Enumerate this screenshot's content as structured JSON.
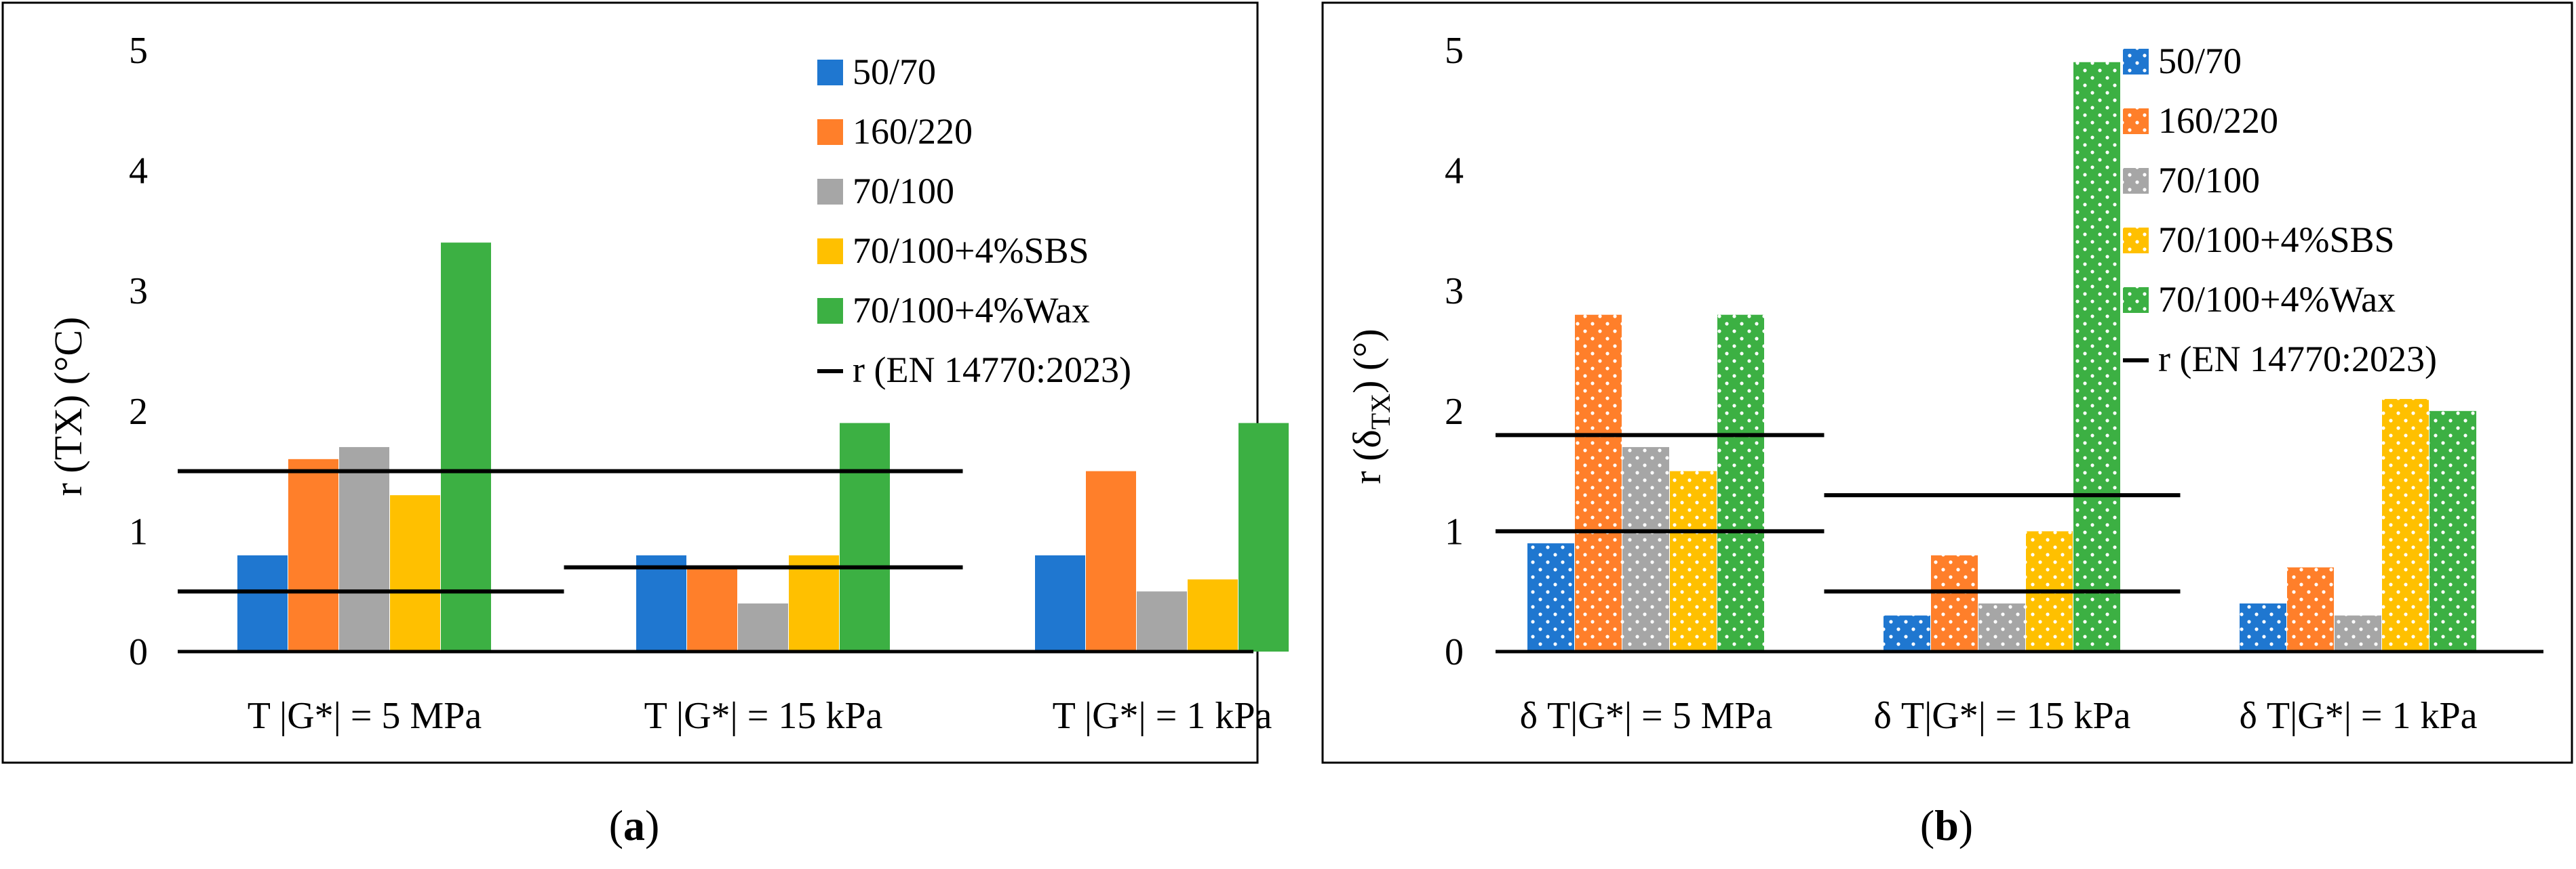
{
  "colors": {
    "50/70": "#1f77d0",
    "160/220": "#ff7f2a",
    "70/100": "#a6a6a6",
    "70/100+4%SBS": "#ffc000",
    "70/100+4%Wax": "#3cb043",
    "ref_line": "#000000"
  },
  "chart_data": [
    {
      "type": "bar",
      "panel_label": "a",
      "ylabel": "r (TX) (°C)",
      "ylim": [
        0,
        5
      ],
      "yticks": [
        "0",
        "1",
        "2",
        "3",
        "4",
        "5"
      ],
      "categories": [
        "T |G*| = 5 MPa",
        "T |G*| = 15 kPa",
        "T |G*| = 1 kPa"
      ],
      "series": [
        {
          "name": "50/70",
          "values": [
            0.8,
            0.8,
            0.8
          ]
        },
        {
          "name": "160/220",
          "values": [
            1.6,
            0.7,
            1.5
          ]
        },
        {
          "name": "70/100",
          "values": [
            1.7,
            0.4,
            0.5
          ]
        },
        {
          "name": "70/100+4%SBS",
          "values": [
            1.3,
            0.8,
            0.6
          ]
        },
        {
          "name": "70/100+4%Wax",
          "values": [
            3.4,
            1.9,
            1.9
          ]
        }
      ],
      "reference": {
        "name": "r (EN 14770:2023)",
        "lines": [
          {
            "category_index": 0,
            "values": [
              1.5,
              0.5
            ]
          },
          {
            "category_index": 1,
            "values": [
              1.5,
              0.7
            ]
          }
        ]
      },
      "pattern": "solid",
      "legend_position": "top-right"
    },
    {
      "type": "bar",
      "panel_label": "b",
      "ylabel": "r (δ",
      "ylabel_sub": "TX",
      "ylabel_end": ") (°)",
      "ylim": [
        0,
        5
      ],
      "yticks": [
        "0",
        "1",
        "2",
        "3",
        "4",
        "5"
      ],
      "categories": [
        "δ T|G*| = 5 MPa",
        "δ T|G*| = 15 kPa",
        "δ T|G*| = 1 kPa"
      ],
      "series": [
        {
          "name": "50/70",
          "values": [
            0.9,
            0.3,
            0.4
          ]
        },
        {
          "name": "160/220",
          "values": [
            2.8,
            0.8,
            0.7
          ]
        },
        {
          "name": "70/100",
          "values": [
            1.7,
            0.4,
            0.3
          ]
        },
        {
          "name": "70/100+4%SBS",
          "values": [
            1.5,
            1.0,
            2.1
          ]
        },
        {
          "name": "70/100+4%Wax",
          "values": [
            2.8,
            4.9,
            2.0
          ]
        }
      ],
      "reference": {
        "name": "r (EN 14770:2023)",
        "lines": [
          {
            "category_index": 0,
            "values": [
              1.8,
              1.0
            ]
          },
          {
            "category_index": 1,
            "values": [
              1.3,
              0.5
            ]
          }
        ]
      },
      "pattern": "dotted",
      "legend_position": "top-right"
    }
  ]
}
